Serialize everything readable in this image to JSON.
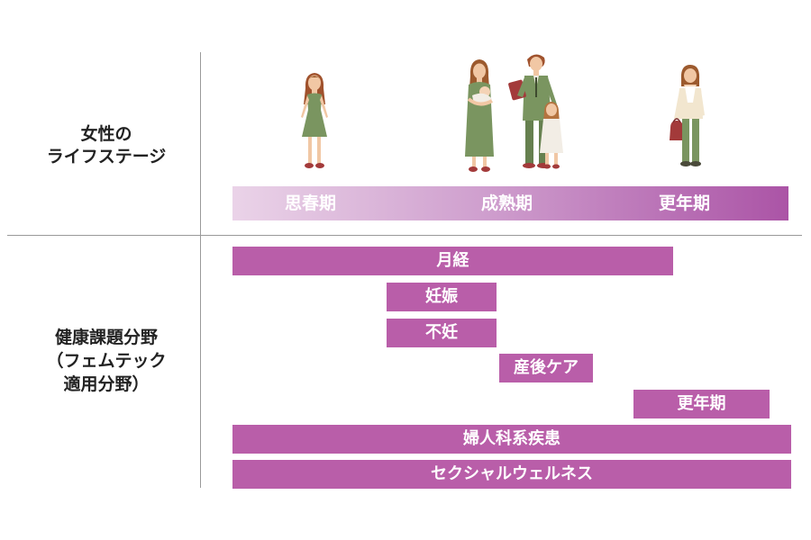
{
  "labels": {
    "life_stage": [
      "女性の",
      "ライフステージ"
    ],
    "health_fields": [
      "健康課題分野",
      "（フェムテック",
      "適用分野）"
    ]
  },
  "stages": [
    "思春期",
    "成熟期",
    "更年期"
  ],
  "bars": [
    "月経",
    "妊娠",
    "不妊",
    "産後ケア",
    "更年期",
    "婦人科系疾患",
    "セクシャルウェルネス"
  ],
  "colors": {
    "bar": "#b95ea9",
    "gradient_start": "#ead3e8",
    "gradient_end": "#ab54a6",
    "divider": "#9a9a9a"
  },
  "figures": [
    "girl-illustration",
    "mother-with-baby-illustration",
    "father-with-daughter-illustration",
    "older-woman-illustration"
  ]
}
